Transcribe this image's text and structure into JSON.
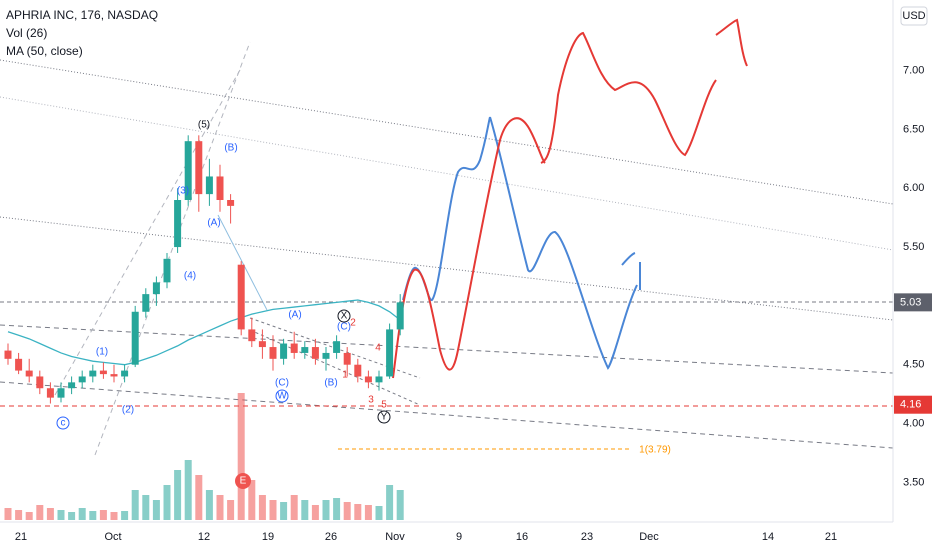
{
  "chart_data": {
    "type": "candlestick",
    "title": "APHRIA INC, 176, NASDAQ",
    "indicators": [
      "Vol (26)",
      "MA (50, close)"
    ],
    "currency": "USD",
    "ylim": [
      3.18,
      7.6
    ],
    "yticks": [
      {
        "value": 3.5,
        "label": "3.50"
      },
      {
        "value": 4.0,
        "label": "4.00"
      },
      {
        "value": 4.5,
        "label": "4.50"
      },
      {
        "value": 5.5,
        "label": "5.50"
      },
      {
        "value": 6.0,
        "label": "6.00"
      },
      {
        "value": 6.5,
        "label": "6.50"
      },
      {
        "value": 7.0,
        "label": "7.00"
      }
    ],
    "xticks": [
      "21",
      "Oct",
      "12",
      "19",
      "26",
      "Nov",
      "9",
      "16",
      "23",
      "Dec",
      "14",
      "21"
    ],
    "up_color": "#26a69a",
    "down_color": "#ef5350",
    "ma_color": "#3bb3c3",
    "open": [
      4.62,
      4.55,
      4.45,
      4.4,
      4.3,
      4.22,
      4.3,
      4.35,
      4.4,
      4.45,
      4.42,
      4.4,
      4.5,
      4.95,
      5.1,
      5.2,
      5.5,
      5.9,
      6.4,
      5.95,
      6.1,
      5.9,
      5.35,
      4.8,
      4.7,
      4.65,
      4.55,
      4.68,
      4.6,
      4.65,
      4.55,
      4.6,
      4.6,
      4.5,
      4.4,
      4.35,
      4.4,
      4.8
    ],
    "high": [
      4.68,
      4.6,
      4.55,
      4.45,
      4.35,
      4.35,
      4.4,
      4.45,
      4.5,
      4.52,
      4.5,
      4.5,
      5.0,
      5.15,
      5.25,
      5.45,
      6.0,
      6.45,
      6.45,
      6.25,
      6.2,
      5.95,
      5.38,
      4.9,
      4.8,
      4.75,
      4.72,
      4.78,
      4.7,
      4.72,
      4.65,
      4.75,
      4.65,
      4.55,
      4.45,
      4.45,
      4.85,
      5.1
    ],
    "low": [
      4.5,
      4.42,
      4.35,
      4.25,
      4.17,
      4.18,
      4.25,
      4.3,
      4.35,
      4.38,
      4.35,
      4.35,
      4.48,
      4.9,
      5.0,
      5.15,
      5.45,
      5.85,
      5.8,
      5.85,
      5.8,
      5.7,
      4.75,
      4.65,
      4.55,
      4.45,
      4.5,
      4.55,
      4.55,
      4.5,
      4.45,
      4.55,
      4.4,
      4.35,
      4.3,
      4.28,
      4.38,
      4.75
    ],
    "close": [
      4.55,
      4.45,
      4.4,
      4.3,
      4.22,
      4.3,
      4.35,
      4.4,
      4.45,
      4.42,
      4.4,
      4.45,
      4.95,
      5.1,
      5.2,
      5.4,
      5.9,
      6.4,
      5.95,
      6.1,
      5.9,
      5.85,
      4.8,
      4.7,
      4.65,
      4.55,
      4.68,
      4.6,
      4.65,
      4.55,
      4.6,
      4.7,
      4.5,
      4.4,
      4.35,
      4.4,
      4.8,
      5.03
    ],
    "volume": [
      1.2,
      1.0,
      0.8,
      1.5,
      1.2,
      1.0,
      0.8,
      1.2,
      0.9,
      1.0,
      0.8,
      0.9,
      3.0,
      2.5,
      2.0,
      3.5,
      5.0,
      6.0,
      4.5,
      3.0,
      2.5,
      2.0,
      12.7,
      4.0,
      2.5,
      2.0,
      1.8,
      2.5,
      2.0,
      1.5,
      2.0,
      2.2,
      1.8,
      1.6,
      1.5,
      1.4,
      3.5,
      3.0
    ],
    "ma": [
      4.78,
      4.75,
      4.72,
      4.68,
      4.64,
      4.6,
      4.57,
      4.55,
      4.53,
      4.52,
      4.51,
      4.5,
      4.52,
      4.55,
      4.58,
      4.62,
      4.66,
      4.71,
      4.75,
      4.79,
      4.83,
      4.87,
      4.9,
      4.93,
      4.95,
      4.97,
      4.98,
      4.99,
      5.0,
      5.01,
      5.02,
      5.03,
      5.04,
      5.05,
      5.03,
      5.0,
      4.95,
      4.88
    ],
    "price_labels": [
      {
        "value": 5.03,
        "color": "#5d606b"
      },
      {
        "value": 4.16,
        "color": "#e53935"
      }
    ],
    "annotations": [
      "(5)",
      "(B)",
      "(3)",
      "(A)",
      "(4)",
      "(1)",
      "(2)",
      "(A)",
      "X",
      "(C)",
      "2",
      "4",
      "1",
      "(B)",
      "(C)",
      "W",
      "3",
      "5",
      "Y",
      "c",
      "E",
      "1(3.79)"
    ]
  }
}
